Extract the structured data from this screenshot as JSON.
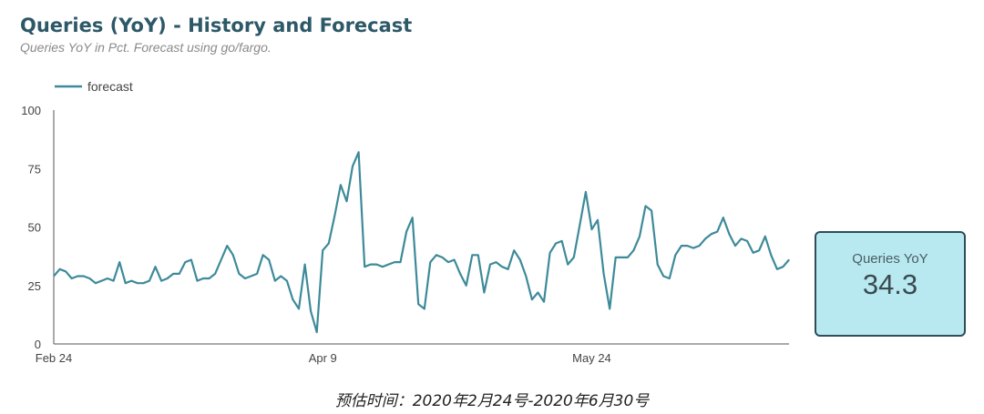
{
  "header": {
    "title": "Queries (YoY) - History and Forecast",
    "subtitle": "Queries YoY in Pct. Forecast using go/fargo."
  },
  "scorecard": {
    "label": "Queries YoY",
    "value": "34.3"
  },
  "caption": "预估时间：2020年2月24号-2020年6月30号",
  "colors": {
    "line": "#3d8a99",
    "axis": "#555555",
    "scorecard_bg": "#b8e9f0",
    "scorecard_border": "#2e4d57"
  },
  "chart_data": {
    "type": "line",
    "title": "Queries (YoY) - History and Forecast",
    "ylim": [
      0,
      100
    ],
    "yticks": [
      0,
      25,
      50,
      75,
      100
    ],
    "x_tick_labels": [
      {
        "label": "Feb 24",
        "day": 0
      },
      {
        "label": "Apr 9",
        "day": 45
      },
      {
        "label": "May 24",
        "day": 90
      }
    ],
    "legend": {
      "position": "top-left",
      "entries": [
        "forecast"
      ]
    },
    "grid": false,
    "series": [
      {
        "name": "forecast",
        "x_start_date": "2020-02-24",
        "values": [
          29,
          32,
          31,
          28,
          29,
          29,
          28,
          26,
          27,
          28,
          27,
          35,
          26,
          27,
          26,
          26,
          27,
          33,
          27,
          28,
          30,
          30,
          35,
          36,
          27,
          28,
          28,
          30,
          36,
          42,
          38,
          30,
          28,
          29,
          30,
          38,
          36,
          27,
          29,
          27,
          19,
          15,
          34,
          14,
          5,
          40,
          43,
          55,
          68,
          61,
          76,
          82,
          33,
          34,
          34,
          33,
          34,
          35,
          35,
          48,
          54,
          17,
          15,
          35,
          38,
          37,
          35,
          36,
          30,
          25,
          38,
          38,
          22,
          34,
          35,
          33,
          32,
          40,
          36,
          29,
          19,
          22,
          18,
          39,
          43,
          44,
          34,
          37,
          51,
          65,
          49,
          53,
          30,
          15,
          37,
          37,
          37,
          40,
          46,
          59,
          57,
          34,
          29,
          28,
          38,
          42,
          42,
          41,
          42,
          45,
          47,
          48,
          54,
          47,
          42,
          45,
          44,
          39,
          40,
          46,
          38,
          32,
          33,
          36
        ]
      }
    ]
  }
}
